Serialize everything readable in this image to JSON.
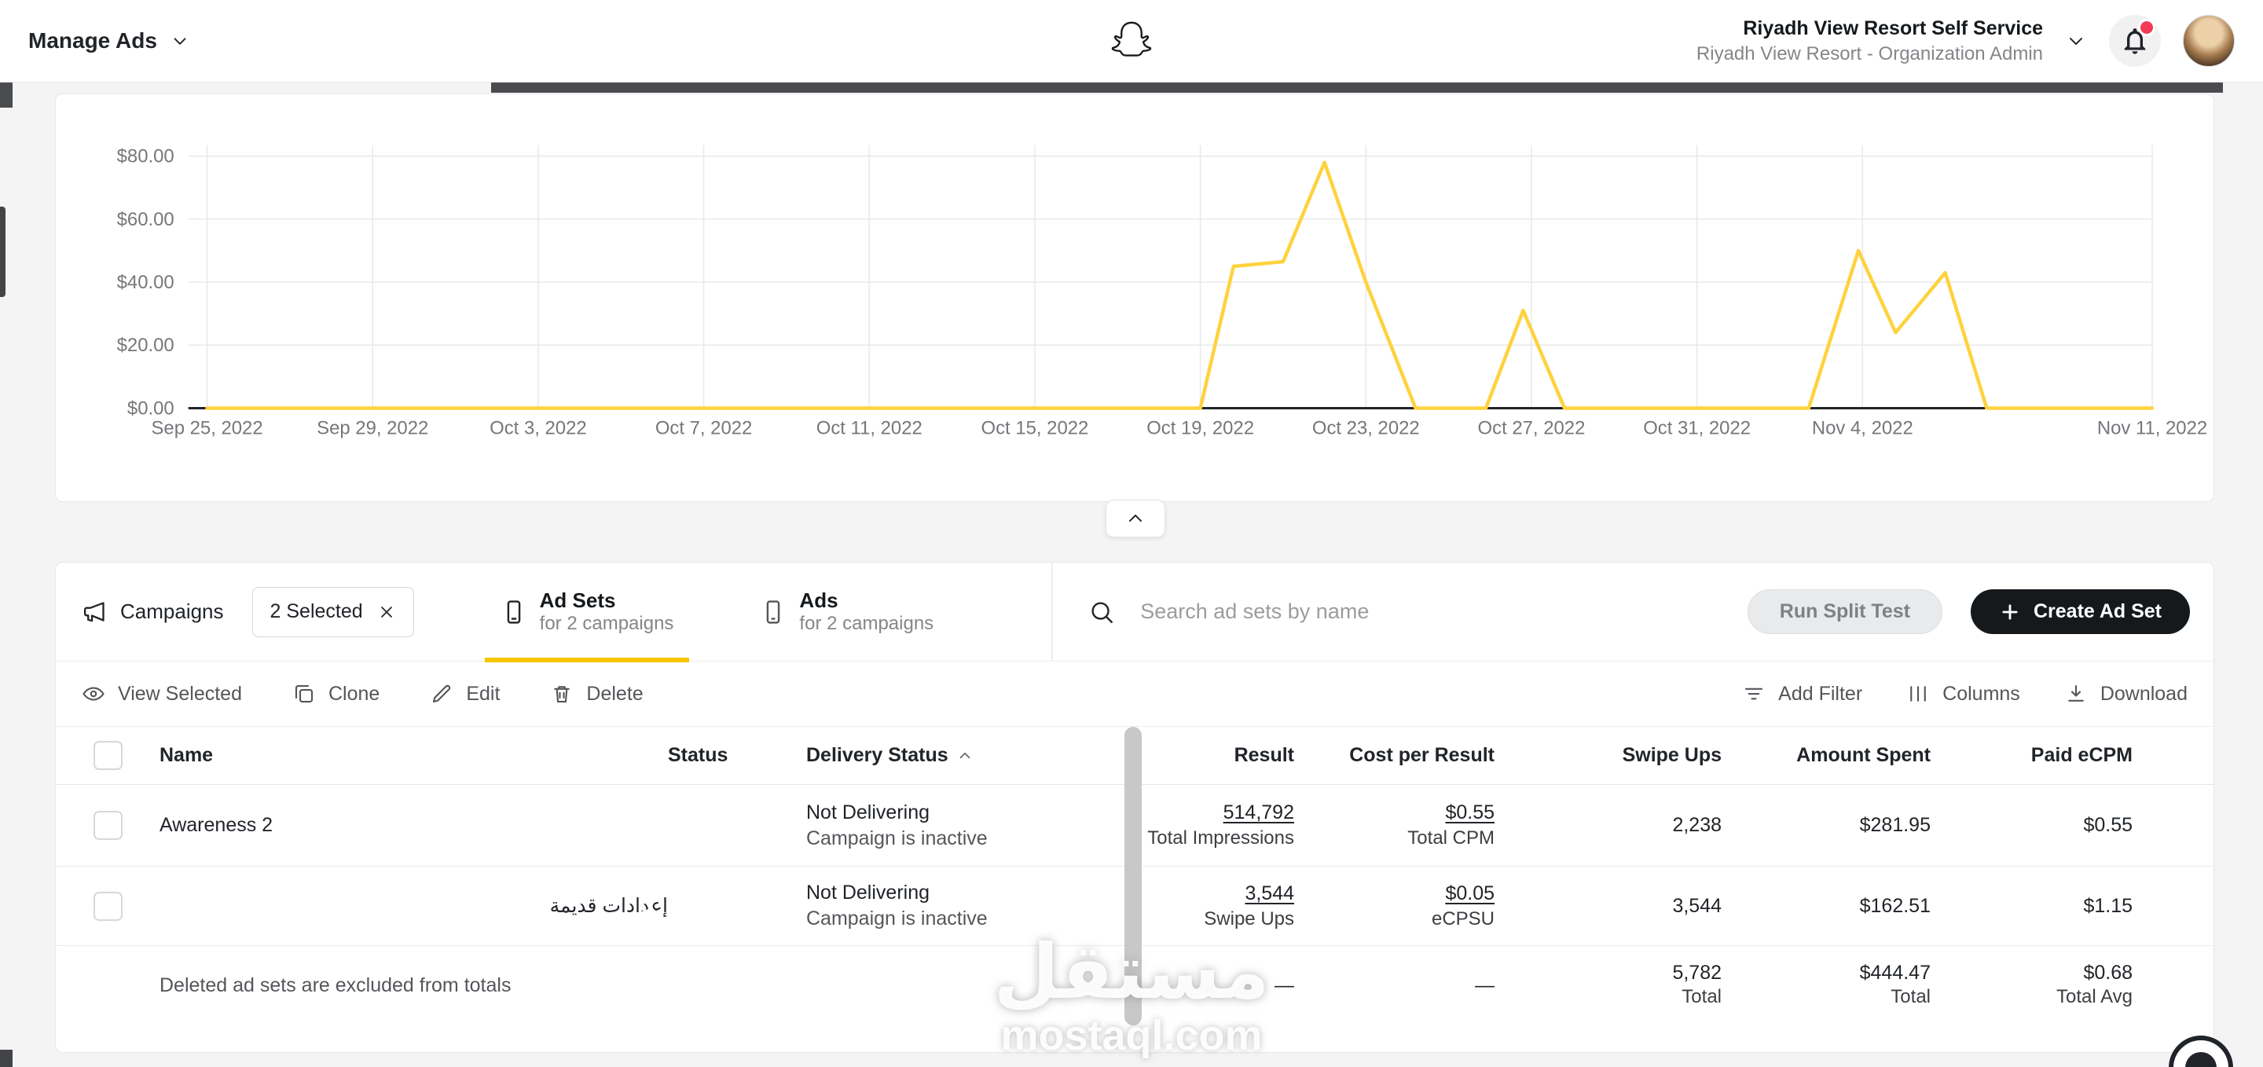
{
  "colors": {
    "accent_yellow": "#F7C600",
    "chart_line": "#FFD23E",
    "toggle_green": "#26C281",
    "cta_black": "#16191C",
    "notification_red": "#F23C57"
  },
  "header": {
    "app_menu": "Manage Ads",
    "account_name": "Riyadh View Resort Self Service",
    "account_role": "Riyadh View Resort - Organization Admin"
  },
  "chart_data": {
    "type": "line",
    "ylim": [
      0,
      80
    ],
    "xlim_days": [
      0,
      47
    ],
    "grid": true,
    "legend": "none",
    "line_color": "#FFD23E",
    "yticks": [
      {
        "label": "$0.00",
        "value": 0
      },
      {
        "label": "$20.00",
        "value": 20
      },
      {
        "label": "$40.00",
        "value": 40
      },
      {
        "label": "$60.00",
        "value": 60
      },
      {
        "label": "$80.00",
        "value": 80
      }
    ],
    "xticks": [
      {
        "label": "Sep 25, 2022",
        "day": 0
      },
      {
        "label": "Sep 29, 2022",
        "day": 4
      },
      {
        "label": "Oct 3, 2022",
        "day": 8
      },
      {
        "label": "Oct 7, 2022",
        "day": 12
      },
      {
        "label": "Oct 11, 2022",
        "day": 16
      },
      {
        "label": "Oct 15, 2022",
        "day": 20
      },
      {
        "label": "Oct 19, 2022",
        "day": 24
      },
      {
        "label": "Oct 23, 2022",
        "day": 28
      },
      {
        "label": "Oct 27, 2022",
        "day": 32
      },
      {
        "label": "Oct 31, 2022",
        "day": 36
      },
      {
        "label": "Nov 4, 2022",
        "day": 40
      },
      {
        "label": "Nov 11, 2022",
        "day": 47
      }
    ],
    "points": [
      [
        0,
        0
      ],
      [
        24,
        0
      ],
      [
        24.8,
        45
      ],
      [
        26,
        46.5
      ],
      [
        27,
        78
      ],
      [
        28,
        40
      ],
      [
        29.2,
        0
      ],
      [
        30.9,
        0
      ],
      [
        31.8,
        31
      ],
      [
        32.8,
        0
      ],
      [
        38.7,
        0
      ],
      [
        39.9,
        50
      ],
      [
        40.8,
        24
      ],
      [
        42,
        43
      ],
      [
        43,
        0
      ],
      [
        47,
        0
      ]
    ]
  },
  "tabs": {
    "campaigns_label": "Campaigns",
    "selected_chip": "2 Selected",
    "adsets_title": "Ad Sets",
    "adsets_sub": "for 2 campaigns",
    "ads_title": "Ads",
    "ads_sub": "for 2 campaigns",
    "search_placeholder": "Search ad sets by name",
    "run_split_test": "Run Split Test",
    "create_ad_set": "Create Ad Set"
  },
  "actions": {
    "view_selected": "View Selected",
    "clone": "Clone",
    "edit": "Edit",
    "delete": "Delete",
    "add_filter": "Add Filter",
    "columns": "Columns",
    "download": "Download"
  },
  "table": {
    "headers": {
      "name": "Name",
      "status": "Status",
      "delivery_status": "Delivery Status",
      "result": "Result",
      "cost_per_result": "Cost per Result",
      "swipe_ups": "Swipe Ups",
      "amount_spent": "Amount Spent",
      "paid_ecpm": "Paid eCPM"
    },
    "rows": [
      {
        "name": "Awareness 2",
        "status_on": true,
        "delivery_line1": "Not Delivering",
        "delivery_line2": "Campaign is inactive",
        "result_value": "514,792",
        "result_label": "Total Impressions",
        "cost_value": "$0.55",
        "cost_label": "Total CPM",
        "swipe_ups": "2,238",
        "amount_spent": "$281.95",
        "paid_ecpm": "$0.55"
      },
      {
        "name": "إعدادات قديمة",
        "status_on": true,
        "delivery_line1": "Not Delivering",
        "delivery_line2": "Campaign is inactive",
        "result_value": "3,544",
        "result_label": "Swipe Ups",
        "cost_value": "$0.05",
        "cost_label": "eCPSU",
        "swipe_ups": "3,544",
        "amount_spent": "$162.51",
        "paid_ecpm": "$1.15"
      }
    ],
    "footer": {
      "note": "Deleted ad sets are excluded from totals",
      "result": "—",
      "cost": "—",
      "swipe_value": "5,782",
      "swipe_label": "Total",
      "amount_value": "$444.47",
      "amount_label": "Total",
      "paid_value": "$0.68",
      "paid_label": "Total Avg"
    }
  },
  "watermark": {
    "title": "مستقل",
    "domain": "mostaql.com"
  }
}
